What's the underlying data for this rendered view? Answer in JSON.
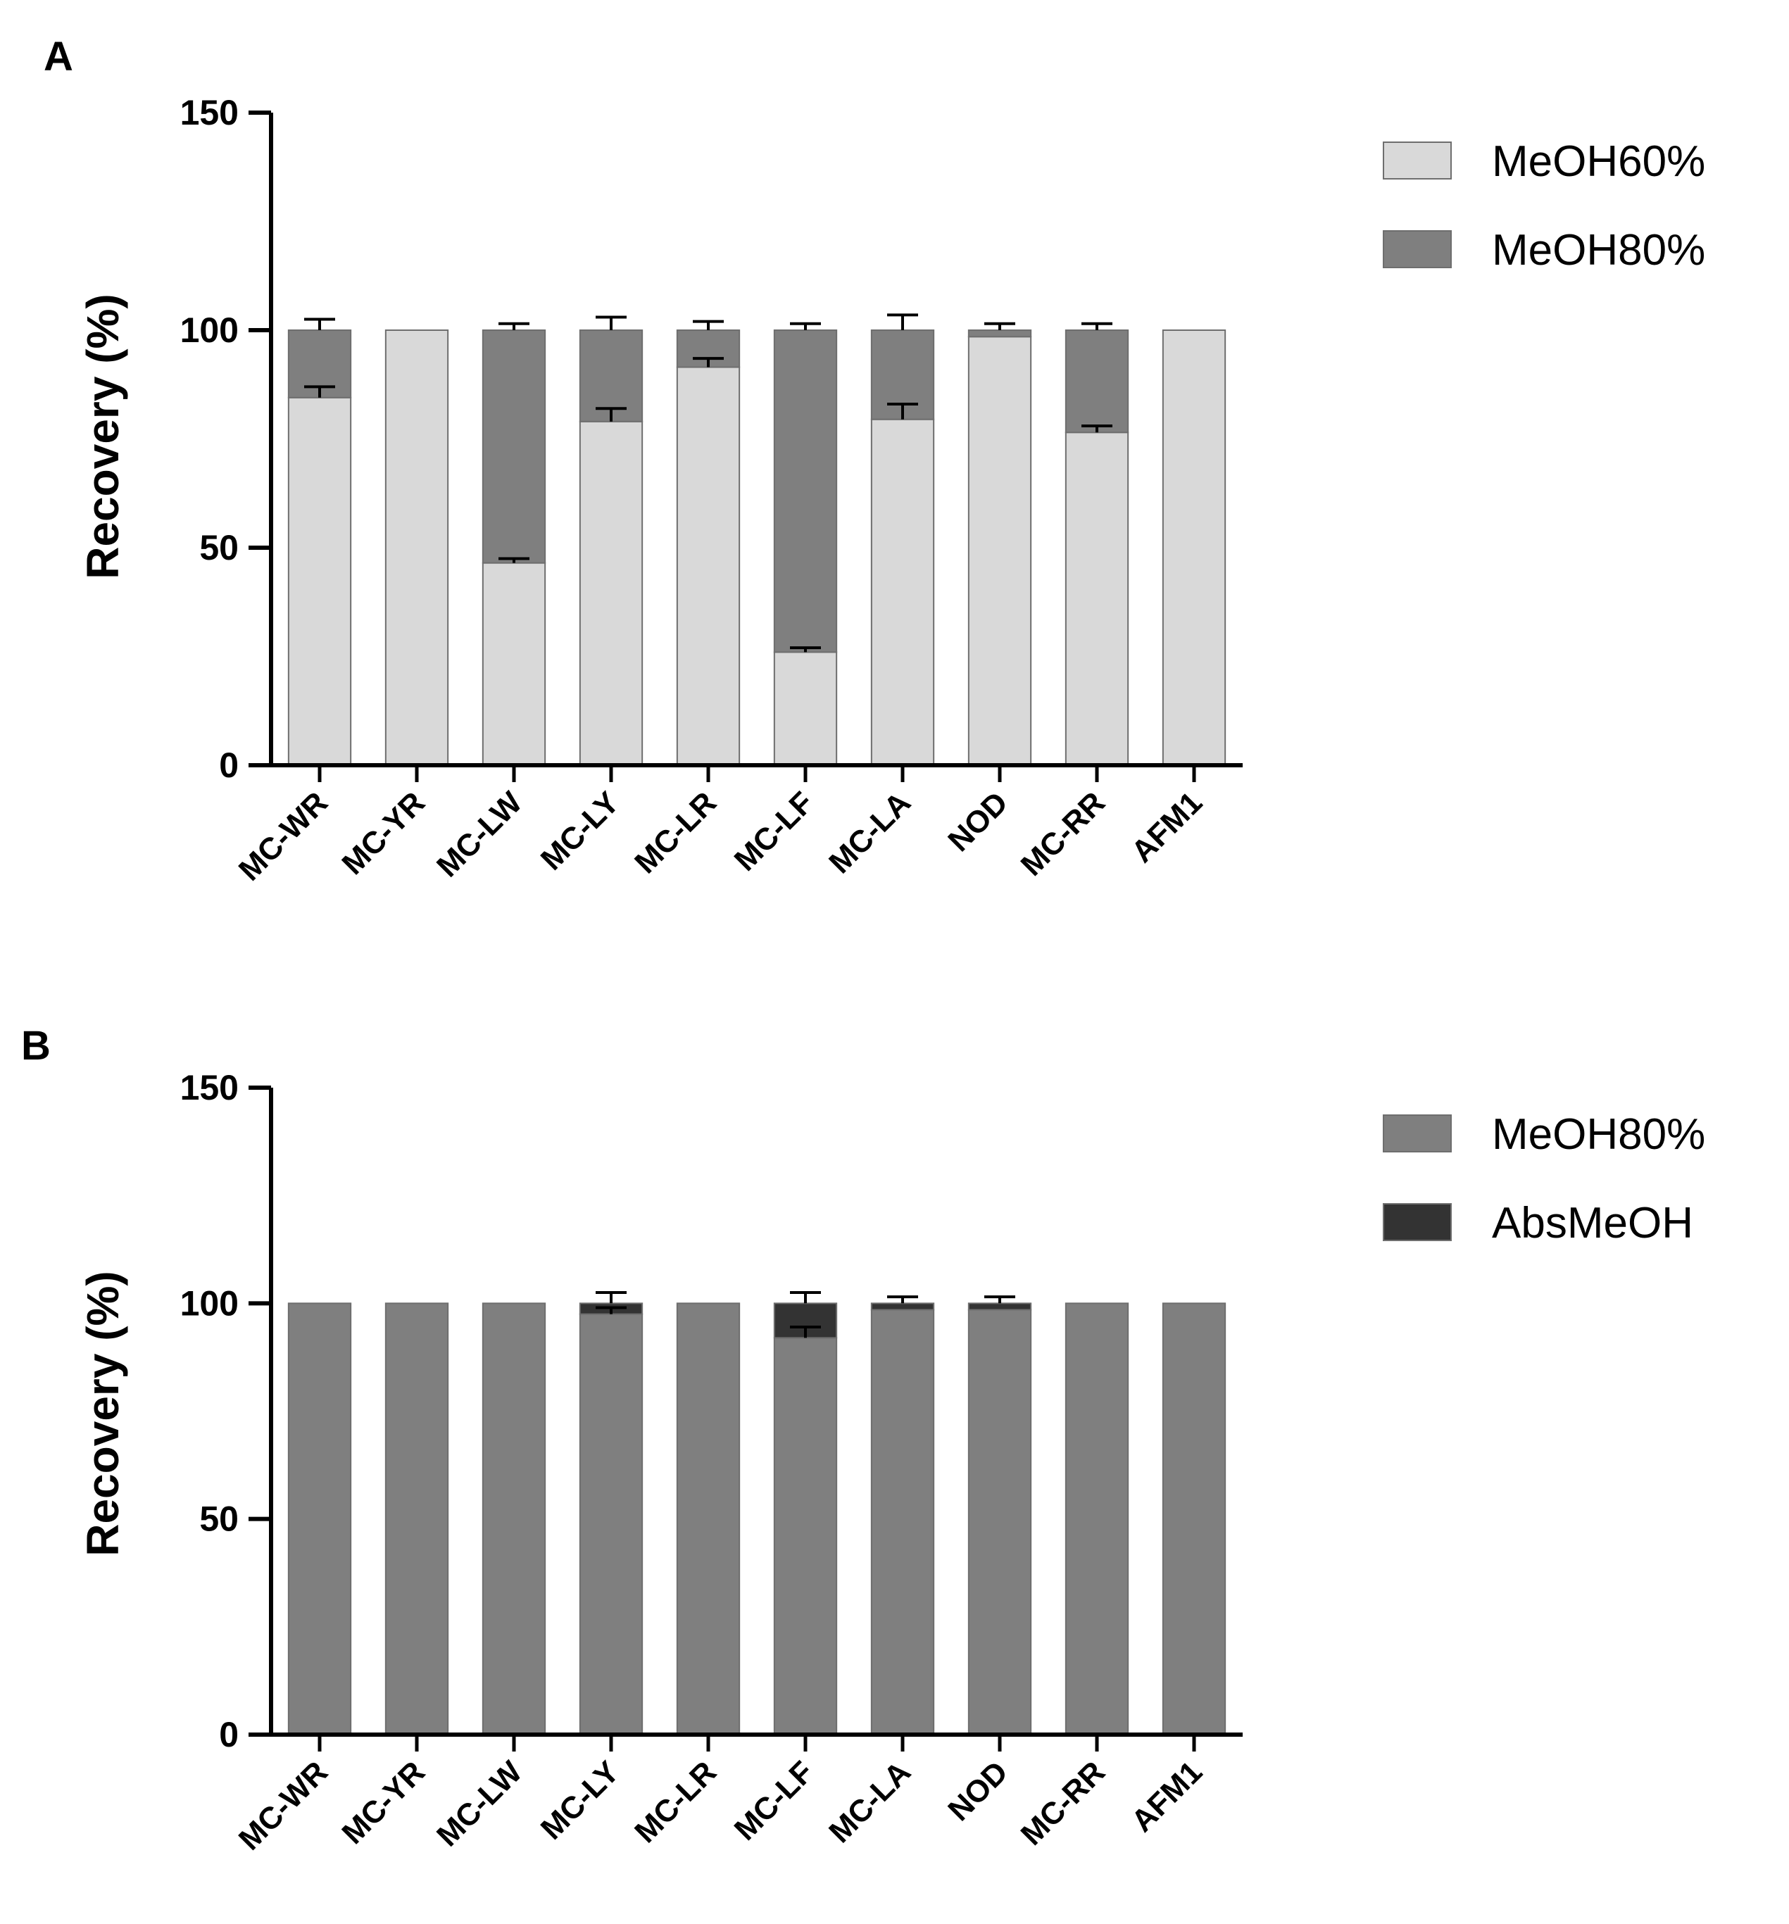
{
  "chart_data": [
    {
      "panel": "A",
      "type": "bar",
      "stacked": true,
      "title": "",
      "xlabel": "",
      "ylabel": "Recovery (%)",
      "ylim": [
        0,
        150
      ],
      "yticks": [
        0,
        50,
        100,
        150
      ],
      "categories": [
        "MC-WR",
        "MC-YR",
        "MC-LW",
        "MC-LY",
        "MC-LR",
        "MC-LF",
        "MC-LA",
        "NOD",
        "MC-RR",
        "AFM1"
      ],
      "legend_position": "top-right",
      "series": [
        {
          "name": "MeOH60%",
          "color": "#d9d9d9",
          "values": [
            84.5,
            100,
            46.5,
            79,
            91.5,
            26,
            79.5,
            98.5,
            76.5,
            100
          ],
          "errors": [
            2.5,
            0,
            1,
            3,
            2,
            1,
            3.5,
            0,
            1.5,
            0
          ]
        },
        {
          "name": "MeOH80%",
          "color": "#7f7f7f",
          "values": [
            15.5,
            0,
            53.5,
            21,
            8.5,
            74,
            20.5,
            1.5,
            23.5,
            0
          ],
          "errors": [
            2.5,
            0,
            1.5,
            3,
            2,
            1.5,
            3.5,
            1.5,
            1.5,
            0
          ]
        }
      ]
    },
    {
      "panel": "B",
      "type": "bar",
      "stacked": true,
      "title": "",
      "xlabel": "",
      "ylabel": "Recovery (%)",
      "ylim": [
        0,
        150
      ],
      "yticks": [
        0,
        50,
        100,
        150
      ],
      "categories": [
        "MC-WR",
        "MC-YR",
        "MC-LW",
        "MC-LY",
        "MC-LR",
        "MC-LF",
        "MC-LA",
        "NOD",
        "MC-RR",
        "AFM1"
      ],
      "legend_position": "top-right",
      "series": [
        {
          "name": "MeOH80%",
          "color": "#7f7f7f",
          "values": [
            100,
            100,
            100,
            97.5,
            100,
            92,
            98.5,
            98.5,
            100,
            100
          ],
          "errors": [
            0,
            0,
            0,
            1.5,
            0,
            2.5,
            0,
            0,
            0,
            0
          ]
        },
        {
          "name": "AbsMeOH",
          "color": "#333333",
          "values": [
            0,
            0,
            0,
            2.5,
            0,
            8,
            1.5,
            1.5,
            0,
            0
          ],
          "errors": [
            0,
            0,
            0,
            2.5,
            0,
            2.5,
            1.5,
            1.5,
            0,
            0
          ]
        }
      ]
    }
  ]
}
